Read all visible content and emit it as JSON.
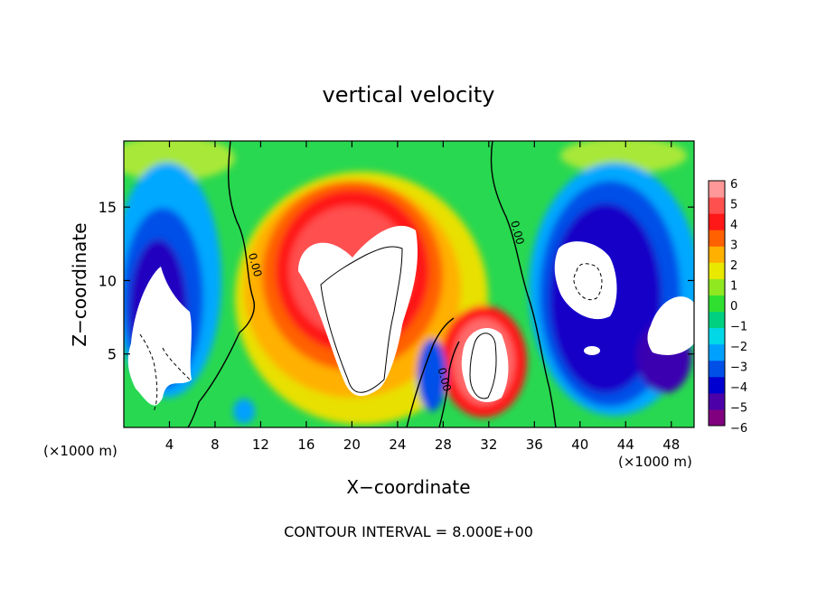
{
  "chart_data": {
    "type": "heatmap",
    "title": "vertical velocity",
    "xlabel": "X−coordinate",
    "ylabel": "Z−coordinate",
    "x_unit_left": "(×1000 m)",
    "x_unit_right": "(×1000 m)",
    "footer": "CONTOUR INTERVAL = 8.000E+00",
    "xlim": [
      0,
      50
    ],
    "ylim": [
      0,
      19.5
    ],
    "x_ticks": [
      4,
      8,
      12,
      16,
      20,
      24,
      28,
      32,
      36,
      40,
      44,
      48
    ],
    "x_tick_labels": [
      "4",
      "8",
      "12",
      "16",
      "20",
      "24",
      "28",
      "32",
      "36",
      "40",
      "44",
      "48"
    ],
    "y_ticks": [
      5,
      10,
      15
    ],
    "y_tick_labels": [
      "5",
      "10",
      "15"
    ],
    "colorbar": {
      "min": -6,
      "max": 6,
      "tick_values": [
        6,
        5,
        4,
        3,
        2,
        1,
        0,
        -1,
        -2,
        -3,
        -4,
        -5,
        -6
      ],
      "tick_labels": [
        "6",
        "5",
        "4",
        "3",
        "2",
        "1",
        "0",
        "−1",
        "−2",
        "−3",
        "−4",
        "−5",
        "−6"
      ],
      "colors": [
        "#800080",
        "#4b00a8",
        "#0000d0",
        "#0050e8",
        "#00a0ff",
        "#00d8e8",
        "#00d080",
        "#30e030",
        "#90e820",
        "#e8e800",
        "#ffb000",
        "#ff6000",
        "#ff1818",
        "#ff5050",
        "#ff9898"
      ]
    },
    "contour_labels": [
      {
        "text": "0.00",
        "x": 11.2,
        "z": 11.0
      },
      {
        "text": "0.00",
        "x": 34.2,
        "z": 13.2
      },
      {
        "text": "0.00",
        "x": 27.8,
        "z": 3.2
      }
    ],
    "features": [
      {
        "name": "downdraft-left",
        "x": 4,
        "z": 7,
        "sx": 3.5,
        "sz": 6,
        "value": -6
      },
      {
        "name": "updraft-central",
        "x": 21,
        "z": 10,
        "sx": 6,
        "sz": 7,
        "value": 6
      },
      {
        "name": "updraft-cell-31",
        "x": 31,
        "z": 4,
        "sx": 2.5,
        "sz": 3.5,
        "value": 6
      },
      {
        "name": "downdraft-right",
        "x": 42,
        "z": 10,
        "sx": 5,
        "sz": 5,
        "value": -6
      },
      {
        "name": "downdraft-right-low",
        "x": 46,
        "z": 4,
        "sx": 3.5,
        "sz": 3,
        "value": -5
      }
    ]
  }
}
